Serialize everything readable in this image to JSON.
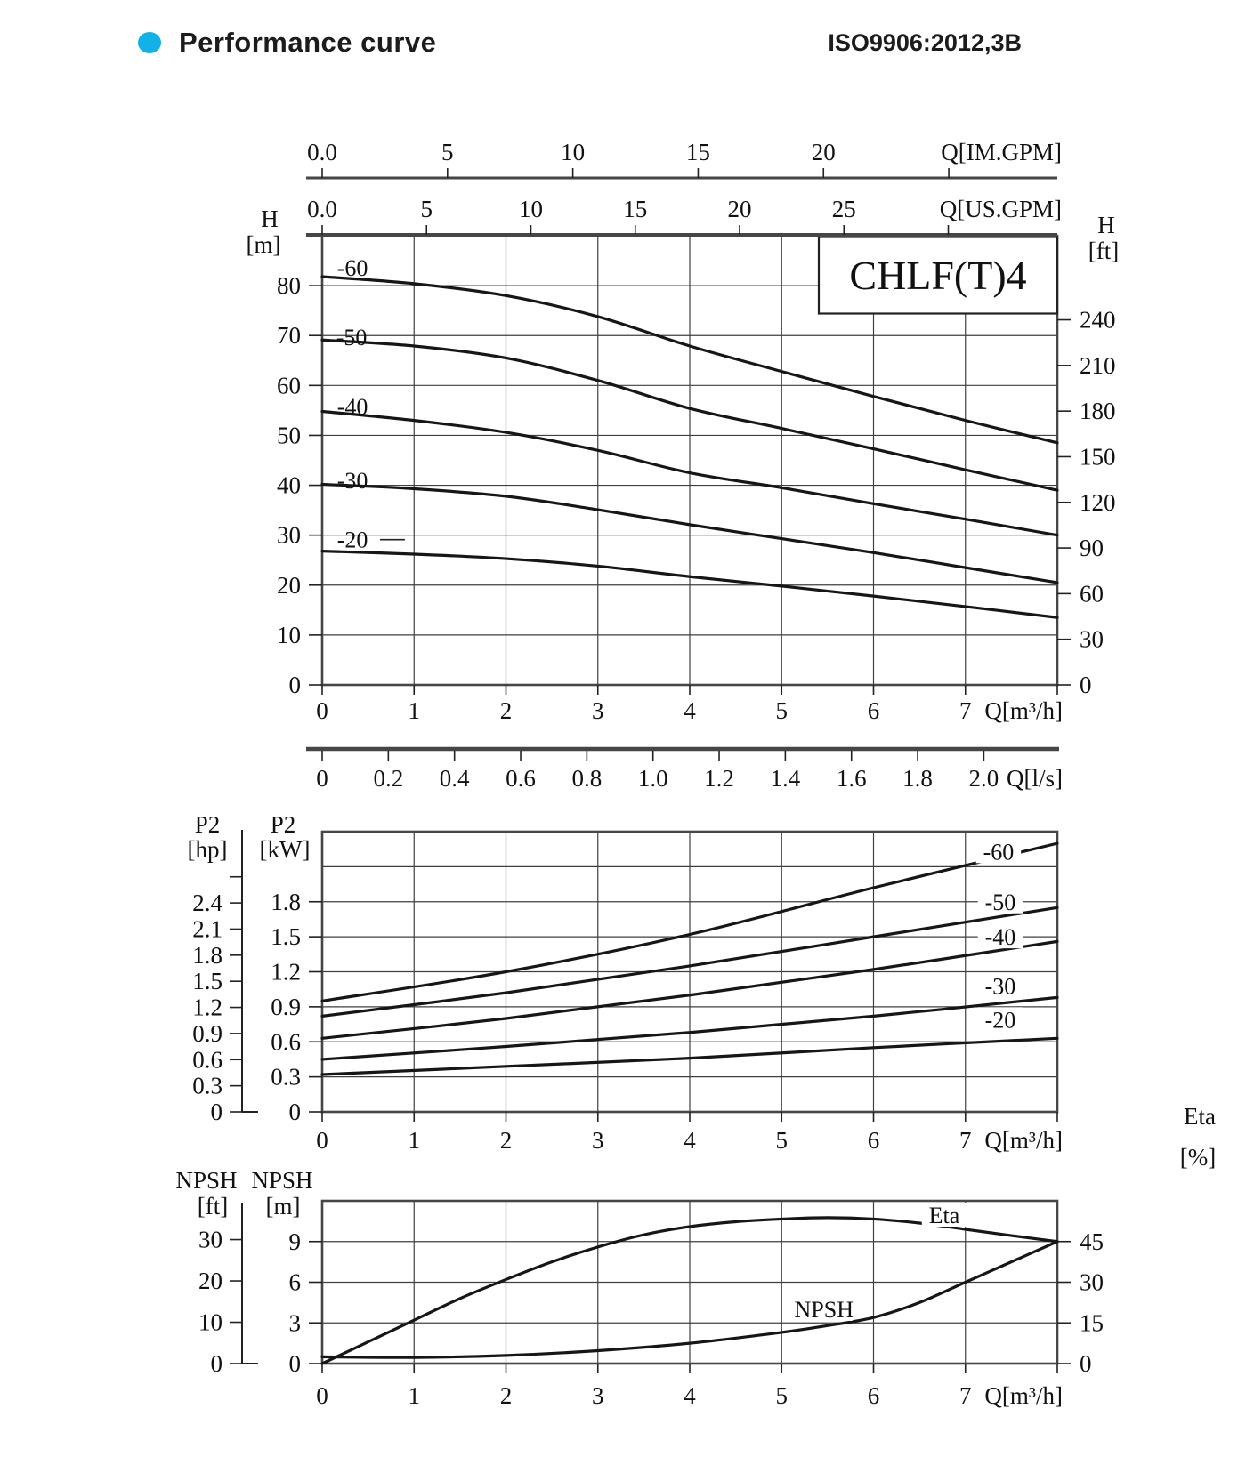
{
  "header": {
    "title": "Performance curve",
    "standard": "ISO9906:2012,3B",
    "bullet_color": "#10b2e8"
  },
  "model_box": {
    "label": "CHLF(T)4"
  },
  "colors": {
    "curve": "#161616",
    "grid": "#3f3f3f",
    "axis": "#464646",
    "text": "#111111"
  },
  "chart_data": [
    {
      "id": "head",
      "type": "line",
      "title": "CHLF(T)4",
      "x": {
        "unit": "Q[m³/h]",
        "min": 0,
        "max": 8,
        "ticks": [
          {
            "v": 0,
            "label": "0"
          },
          {
            "v": 1,
            "label": "1"
          },
          {
            "v": 2,
            "label": "2"
          },
          {
            "v": 3,
            "label": "3"
          },
          {
            "v": 4,
            "label": "4"
          },
          {
            "v": 5,
            "label": "5"
          },
          {
            "v": 6,
            "label": "6"
          },
          {
            "v": 7,
            "label": "7"
          },
          {
            "v": 8,
            "label": ""
          }
        ],
        "gridlines": [
          1,
          2,
          3,
          4,
          5,
          6,
          7
        ]
      },
      "y_left": {
        "name": "H",
        "unit": "[m]",
        "min": 0,
        "max": 90,
        "ticks": [
          {
            "v": 0,
            "label": "0"
          },
          {
            "v": 10,
            "label": "10"
          },
          {
            "v": 20,
            "label": "20"
          },
          {
            "v": 30,
            "label": "30"
          },
          {
            "v": 40,
            "label": "40"
          },
          {
            "v": 50,
            "label": "50"
          },
          {
            "v": 60,
            "label": "60"
          },
          {
            "v": 70,
            "label": "70"
          },
          {
            "v": 80,
            "label": "80"
          }
        ],
        "gridlines": [
          10,
          20,
          30,
          40,
          50,
          60,
          70,
          80
        ]
      },
      "y_right": {
        "name": "H",
        "unit": "[ft]",
        "m_per_unit": 0.3048,
        "ticks": [
          {
            "v": 0,
            "label": "0"
          },
          {
            "v": 30,
            "label": "30"
          },
          {
            "v": 60,
            "label": "60"
          },
          {
            "v": 90,
            "label": "90"
          },
          {
            "v": 120,
            "label": "120"
          },
          {
            "v": 150,
            "label": "150"
          },
          {
            "v": 180,
            "label": "180"
          },
          {
            "v": 210,
            "label": "210"
          },
          {
            "v": 240,
            "label": "240"
          }
        ]
      },
      "top_axes": [
        {
          "unit": "Q[IM.GPM]",
          "m3h_per_unit": 0.27276,
          "ticks": [
            {
              "v": 0,
              "label": "0.0"
            },
            {
              "v": 5,
              "label": "5"
            },
            {
              "v": 10,
              "label": "10"
            },
            {
              "v": 15,
              "label": "15"
            },
            {
              "v": 20,
              "label": "20"
            },
            {
              "v": 25,
              "label": ""
            }
          ]
        },
        {
          "unit": "Q[US.GPM]",
          "m3h_per_unit": 0.22712,
          "ticks": [
            {
              "v": 0,
              "label": "0.0"
            },
            {
              "v": 5,
              "label": "5"
            },
            {
              "v": 10,
              "label": "10"
            },
            {
              "v": 15,
              "label": "15"
            },
            {
              "v": 20,
              "label": "20"
            },
            {
              "v": 25,
              "label": "25"
            },
            {
              "v": 30,
              "label": ""
            }
          ]
        }
      ],
      "bottom_axis": {
        "unit": "Q[l/s]",
        "m3h_per_unit": 3.6,
        "ticks": [
          {
            "v": 0,
            "label": "0"
          },
          {
            "v": 0.2,
            "label": "0.2"
          },
          {
            "v": 0.4,
            "label": "0.4"
          },
          {
            "v": 0.6,
            "label": "0.6"
          },
          {
            "v": 0.8,
            "label": "0.8"
          },
          {
            "v": 1.0,
            "label": "1.0"
          },
          {
            "v": 1.2,
            "label": "1.2"
          },
          {
            "v": 1.4,
            "label": "1.4"
          },
          {
            "v": 1.6,
            "label": "1.6"
          },
          {
            "v": 1.8,
            "label": "1.8"
          },
          {
            "v": 2.0,
            "label": "2.0"
          }
        ]
      },
      "series": [
        {
          "name": "-60",
          "label_at": [
            0.33,
            83.6
          ],
          "points": [
            [
              0,
              81.8
            ],
            [
              1,
              80.4
            ],
            [
              2,
              78.0
            ],
            [
              3,
              73.8
            ],
            [
              4,
              67.9
            ],
            [
              5,
              62.8
            ],
            [
              6,
              57.8
            ],
            [
              7,
              53.0
            ],
            [
              8,
              48.5
            ]
          ]
        },
        {
          "name": "-50",
          "label_at": [
            0.32,
            69.7
          ],
          "points": [
            [
              0,
              69.1
            ],
            [
              1,
              67.9
            ],
            [
              2,
              65.5
            ],
            [
              3,
              61.0
            ],
            [
              4,
              55.4
            ],
            [
              5,
              51.4
            ],
            [
              6,
              47.3
            ],
            [
              7,
              43.1
            ],
            [
              8,
              39.0
            ]
          ]
        },
        {
          "name": "-40",
          "label_at": [
            0.33,
            55.8
          ],
          "points": [
            [
              0,
              54.8
            ],
            [
              1,
              53.0
            ],
            [
              2,
              50.6
            ],
            [
              3,
              47.0
            ],
            [
              4,
              42.5
            ],
            [
              5,
              39.5
            ],
            [
              6,
              36.3
            ],
            [
              7,
              33.2
            ],
            [
              8,
              30.0
            ]
          ]
        },
        {
          "name": "-30",
          "label_at": [
            0.33,
            41.0
          ],
          "points": [
            [
              0,
              40.2
            ],
            [
              1,
              39.3
            ],
            [
              2,
              37.8
            ],
            [
              3,
              35.1
            ],
            [
              4,
              32.1
            ],
            [
              5,
              29.3
            ],
            [
              6,
              26.5
            ],
            [
              7,
              23.5
            ],
            [
              8,
              20.5
            ]
          ]
        },
        {
          "name": "-20",
          "label_at": [
            0.33,
            29.1
          ],
          "points": [
            [
              0,
              26.8
            ],
            [
              1,
              26.2
            ],
            [
              2,
              25.3
            ],
            [
              3,
              23.8
            ],
            [
              4,
              21.7
            ],
            [
              5,
              19.8
            ],
            [
              6,
              17.8
            ],
            [
              7,
              15.7
            ],
            [
              8,
              13.5
            ]
          ]
        }
      ],
      "leaders": [
        {
          "from": [
            0.63,
            29.1
          ],
          "to": [
            0.9,
            29.1
          ]
        }
      ]
    },
    {
      "id": "power",
      "type": "line",
      "x": {
        "unit": "Q[m³/h]",
        "min": 0,
        "max": 8,
        "ticks": [
          {
            "v": 0,
            "label": "0"
          },
          {
            "v": 1,
            "label": "1"
          },
          {
            "v": 2,
            "label": "2"
          },
          {
            "v": 3,
            "label": "3"
          },
          {
            "v": 4,
            "label": "4"
          },
          {
            "v": 5,
            "label": "5"
          },
          {
            "v": 6,
            "label": "6"
          },
          {
            "v": 7,
            "label": "7"
          },
          {
            "v": 8,
            "label": ""
          }
        ],
        "gridlines": [
          1,
          2,
          3,
          4,
          5,
          6,
          7
        ]
      },
      "y_left": {
        "name": "P2",
        "unit": "[kW]",
        "min": 0,
        "max": 2.4,
        "ticks": [
          {
            "v": 0,
            "label": "0"
          },
          {
            "v": 0.3,
            "label": "0.3"
          },
          {
            "v": 0.6,
            "label": "0.6"
          },
          {
            "v": 0.9,
            "label": "0.9"
          },
          {
            "v": 1.2,
            "label": "1.2"
          },
          {
            "v": 1.5,
            "label": "1.5"
          },
          {
            "v": 1.8,
            "label": "1.8"
          }
        ],
        "gridlines": [
          0.3,
          0.6,
          0.9,
          1.2,
          1.5,
          1.8,
          2.1
        ]
      },
      "y_far_left": {
        "name": "P2",
        "unit": "[hp]",
        "kw_per_unit": 0.7457,
        "ticks": [
          {
            "v": 0,
            "label": "0"
          },
          {
            "v": 0.3,
            "label": "0.3"
          },
          {
            "v": 0.6,
            "label": "0.6"
          },
          {
            "v": 0.9,
            "label": "0.9"
          },
          {
            "v": 1.2,
            "label": "1.2"
          },
          {
            "v": 1.5,
            "label": "1.5"
          },
          {
            "v": 1.8,
            "label": "1.8"
          },
          {
            "v": 2.1,
            "label": "2.1"
          },
          {
            "v": 2.4,
            "label": "2.4"
          },
          {
            "v": 2.7,
            "label": ""
          }
        ]
      },
      "series": [
        {
          "name": "-60",
          "label_at": [
            7.36,
            2.23
          ],
          "points": [
            [
              0,
              0.95
            ],
            [
              2,
              1.2
            ],
            [
              4,
              1.52
            ],
            [
              6,
              1.92
            ],
            [
              8,
              2.3
            ]
          ]
        },
        {
          "name": "-50",
          "label_at": [
            7.38,
            1.8
          ],
          "points": [
            [
              0,
              0.82
            ],
            [
              2,
              1.02
            ],
            [
              4,
              1.25
            ],
            [
              6,
              1.5
            ],
            [
              8,
              1.75
            ]
          ]
        },
        {
          "name": "-40",
          "label_at": [
            7.38,
            1.5
          ],
          "points": [
            [
              0,
              0.63
            ],
            [
              2,
              0.8
            ],
            [
              4,
              1.0
            ],
            [
              6,
              1.22
            ],
            [
              8,
              1.46
            ]
          ]
        },
        {
          "name": "-30",
          "label_at": [
            7.38,
            1.08
          ],
          "points": [
            [
              0,
              0.45
            ],
            [
              2,
              0.56
            ],
            [
              4,
              0.68
            ],
            [
              6,
              0.82
            ],
            [
              8,
              0.98
            ]
          ]
        },
        {
          "name": "-20",
          "label_at": [
            7.38,
            0.79
          ],
          "points": [
            [
              0,
              0.32
            ],
            [
              2,
              0.39
            ],
            [
              4,
              0.46
            ],
            [
              6,
              0.55
            ],
            [
              8,
              0.63
            ]
          ]
        }
      ]
    },
    {
      "id": "npsh",
      "type": "line",
      "x": {
        "unit": "Q[m³/h]",
        "min": 0,
        "max": 8,
        "ticks": [
          {
            "v": 0,
            "label": "0"
          },
          {
            "v": 1,
            "label": "1"
          },
          {
            "v": 2,
            "label": "2"
          },
          {
            "v": 3,
            "label": "3"
          },
          {
            "v": 4,
            "label": "4"
          },
          {
            "v": 5,
            "label": "5"
          },
          {
            "v": 6,
            "label": "6"
          },
          {
            "v": 7,
            "label": "7"
          },
          {
            "v": 8,
            "label": ""
          }
        ],
        "gridlines": [
          1,
          2,
          3,
          4,
          5,
          6,
          7
        ]
      },
      "y_left": {
        "name": "NPSH",
        "unit": "[m]",
        "min": 0,
        "max": 12,
        "ticks": [
          {
            "v": 0,
            "label": "0"
          },
          {
            "v": 3,
            "label": "3"
          },
          {
            "v": 6,
            "label": "6"
          },
          {
            "v": 9,
            "label": "9"
          }
        ],
        "gridlines": [
          3,
          6,
          9
        ]
      },
      "y_far_left": {
        "name": "NPSH",
        "unit": "[ft]",
        "m_per_unit": 0.3048,
        "ticks": [
          {
            "v": 0,
            "label": "0"
          },
          {
            "v": 10,
            "label": "10"
          },
          {
            "v": 20,
            "label": "20"
          },
          {
            "v": 30,
            "label": "30"
          }
        ]
      },
      "y_right": {
        "name": "Eta",
        "unit": "[%]",
        "m_per_unit": 0.2,
        "ticks": [
          {
            "v": 0,
            "label": "0"
          },
          {
            "v": 15,
            "label": "15"
          },
          {
            "v": 30,
            "label": "30"
          },
          {
            "v": 45,
            "label": "45"
          }
        ]
      },
      "series": [
        {
          "name": "Eta",
          "label_at": [
            6.77,
            10.95
          ],
          "points": [
            [
              0,
              0
            ],
            [
              0.5,
              1.6
            ],
            [
              1,
              3.2
            ],
            [
              1.5,
              4.8
            ],
            [
              2,
              6.2
            ],
            [
              2.5,
              7.5
            ],
            [
              3,
              8.6
            ],
            [
              3.5,
              9.5
            ],
            [
              4,
              10.1
            ],
            [
              4.5,
              10.46
            ],
            [
              5,
              10.66
            ],
            [
              5.5,
              10.76
            ],
            [
              6,
              10.66
            ],
            [
              6.5,
              10.36
            ],
            [
              7,
              9.9
            ],
            [
              7.5,
              9.44
            ],
            [
              8,
              9.0
            ]
          ]
        },
        {
          "name": "NPSH",
          "label_at": [
            5.46,
            4.0
          ],
          "points": [
            [
              0,
              0.5
            ],
            [
              1,
              0.45
            ],
            [
              2,
              0.6
            ],
            [
              3,
              0.95
            ],
            [
              4,
              1.5
            ],
            [
              5,
              2.3
            ],
            [
              5.5,
              2.8
            ],
            [
              6,
              3.4
            ],
            [
              6.5,
              4.5
            ],
            [
              7,
              6.0
            ],
            [
              7.5,
              7.5
            ],
            [
              8,
              9.0
            ]
          ]
        }
      ]
    }
  ]
}
